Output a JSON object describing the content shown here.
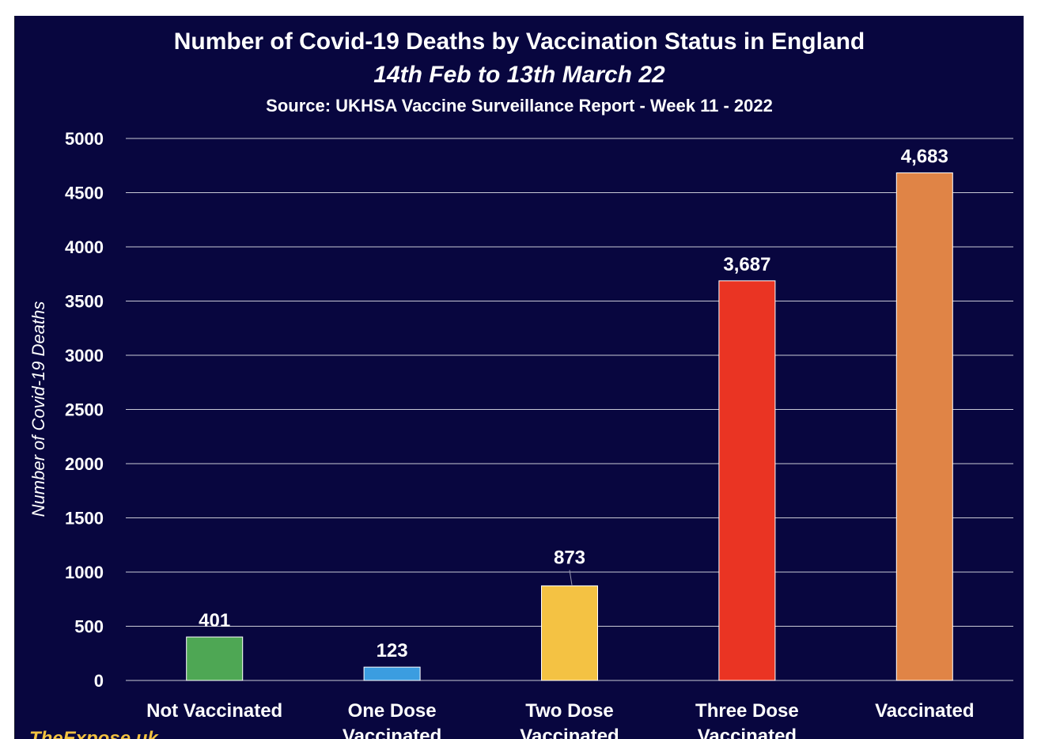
{
  "chart_data": {
    "type": "bar",
    "title": "Number of Covid-19 Deaths by Vaccination Status in England",
    "subtitle": "14th Feb to 13th March 22",
    "source": "Source: UKHSA Vaccine Surveillance Report - Week 11 - 2022",
    "ylabel": "Number of Covid-19 Deaths",
    "xlabel": "",
    "ylim": [
      0,
      5000
    ],
    "yticks": [
      0,
      500,
      1000,
      1500,
      2000,
      2500,
      3000,
      3500,
      4000,
      4500,
      5000
    ],
    "grid": true,
    "categories": [
      [
        "Not Vaccinated"
      ],
      [
        "One Dose",
        "Vaccinated"
      ],
      [
        "Two Dose",
        "Vaccinated"
      ],
      [
        "Three Dose",
        "Vaccinated"
      ],
      [
        "Vaccinated"
      ]
    ],
    "values": [
      401,
      123,
      873,
      3687,
      4683
    ],
    "data_labels": [
      "401",
      "123",
      "873",
      "3,687",
      "4,683"
    ],
    "colors": [
      "#4ea754",
      "#3b9de0",
      "#f4c243",
      "#ea3423",
      "#e08446"
    ]
  },
  "watermark": "TheExpose.uk",
  "colors": {
    "background": "#08063f",
    "gridline": "#c9c9d6",
    "text": "#ffffff"
  }
}
